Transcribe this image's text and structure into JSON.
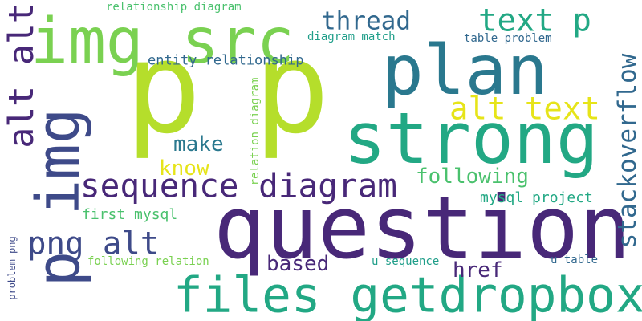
{
  "palette": {
    "yellow_green": "#b5de2b",
    "light_green": "#7ad151",
    "green": "#4ac16d",
    "teal_green": "#22a884",
    "teal": "#1f9e89",
    "blue_teal": "#2a788e",
    "steel_blue": "#31688e",
    "indigo": "#3e4a89",
    "dark_purple": "#482878",
    "deep_purple": "#440154",
    "yellow": "#e6e419"
  },
  "words": [
    {
      "text": "question",
      "color": "#482878"
    },
    {
      "text": "p",
      "color": "#b5de2b"
    },
    {
      "text": "p",
      "color": "#b5de2b"
    },
    {
      "text": "strong",
      "color": "#22a884"
    },
    {
      "text": "plan",
      "color": "#2a788e"
    },
    {
      "text": "files getdropbox",
      "color": "#22a884"
    },
    {
      "text": "img src",
      "color": "#7ad151"
    },
    {
      "text": "p img",
      "color": "#3e4a89"
    },
    {
      "text": "alt alt",
      "color": "#482878"
    },
    {
      "text": "sequence diagram",
      "color": "#482878"
    },
    {
      "text": "alt text",
      "color": "#e6e419"
    },
    {
      "text": "text p",
      "color": "#22a884"
    },
    {
      "text": "png alt",
      "color": "#3e4a89"
    },
    {
      "text": "stackoverflow",
      "color": "#31688e"
    },
    {
      "text": "thread",
      "color": "#31688e"
    },
    {
      "text": "make",
      "color": "#2a788e"
    },
    {
      "text": "know",
      "color": "#e6e419"
    },
    {
      "text": "following",
      "color": "#4ac16d"
    },
    {
      "text": "based",
      "color": "#482878"
    },
    {
      "text": "href",
      "color": "#482878"
    },
    {
      "text": "first mysql",
      "color": "#4ac16d"
    },
    {
      "text": "mysql project",
      "color": "#22a884"
    },
    {
      "text": "entity relationship",
      "color": "#31688e"
    },
    {
      "text": "relationship diagram",
      "color": "#4ac16d"
    },
    {
      "text": "diagram match",
      "color": "#1f9e89"
    },
    {
      "text": "table problem",
      "color": "#31688e"
    },
    {
      "text": "relation diagram",
      "color": "#7ad151"
    },
    {
      "text": "following relation",
      "color": "#7ad151"
    },
    {
      "text": "u sequence",
      "color": "#1f9e89"
    },
    {
      "text": "u table",
      "color": "#31688e"
    },
    {
      "text": "problem png",
      "color": "#3e4a89"
    }
  ]
}
